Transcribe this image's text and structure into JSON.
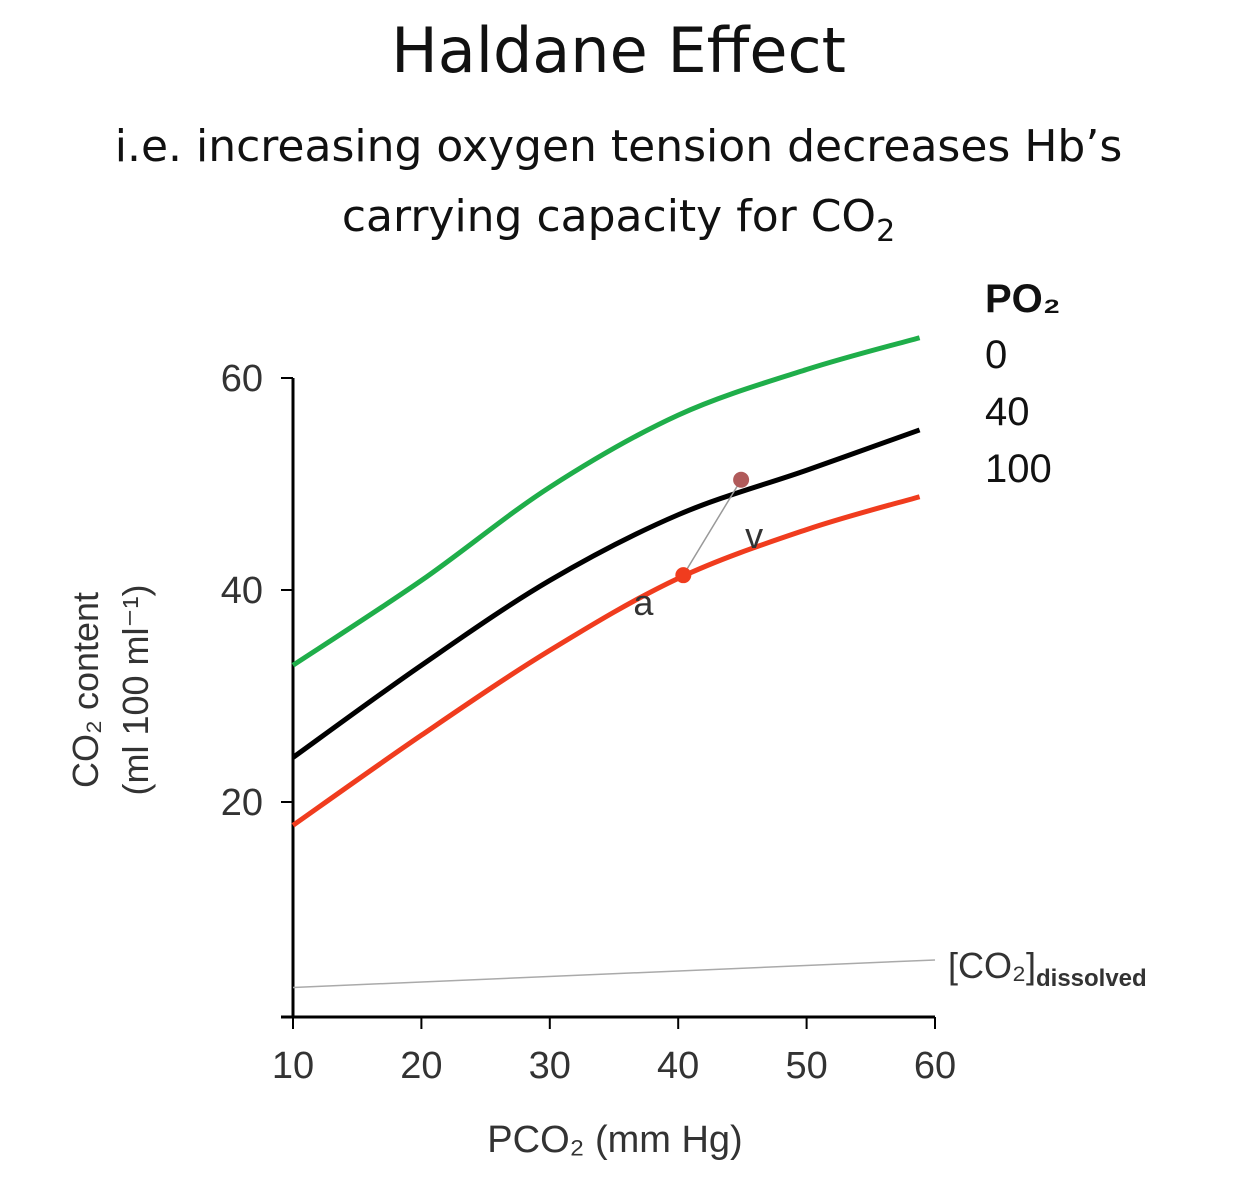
{
  "title": "Haldane Effect",
  "subtitle_line1": "i.e. increasing oxygen tension decreases Hb’s",
  "subtitle_line2": "carrying capacity for CO",
  "subtitle_sub": "2",
  "chart_data": {
    "type": "line",
    "xlabel": "PCO₂ (mm Hg)",
    "ylabel_line1": "CO₂ content",
    "ylabel_line2": "(ml 100 ml⁻¹)",
    "xlim": [
      10,
      60
    ],
    "ylim": [
      0,
      60
    ],
    "xticks": [
      10,
      20,
      30,
      40,
      50,
      60
    ],
    "yticks": [
      20,
      40,
      60
    ],
    "grid": false,
    "legend_title": "PO₂",
    "legend_placement": "top-right",
    "series": [
      {
        "name": "0",
        "color": "#1fae4a",
        "x": [
          10,
          20,
          30,
          40,
          50,
          58.8
        ],
        "y": [
          32.9,
          40.9,
          49.7,
          56.5,
          60.8,
          63.8
        ]
      },
      {
        "name": "40",
        "color": "#000000",
        "x": [
          10,
          20,
          30,
          40,
          50,
          58.8
        ],
        "y": [
          24.2,
          32.9,
          40.9,
          47.1,
          51.3,
          55.1
        ]
      },
      {
        "name": "100",
        "color": "#f03c1e",
        "x": [
          10,
          20,
          30,
          40,
          50,
          58.8
        ],
        "y": [
          17.8,
          26.3,
          34.3,
          41.1,
          45.7,
          48.8
        ]
      }
    ],
    "points": [
      {
        "label": "v",
        "x": 44.9,
        "y": 50.4,
        "color": "#b05a5a"
      },
      {
        "label": "a",
        "x": 40.4,
        "y": 41.4,
        "color": "#f03c1e"
      }
    ],
    "dissolved": {
      "label": "[CO₂]",
      "label_sub": "dissolved",
      "x": [
        10,
        60
      ],
      "y": [
        2.5,
        5.1
      ]
    }
  }
}
